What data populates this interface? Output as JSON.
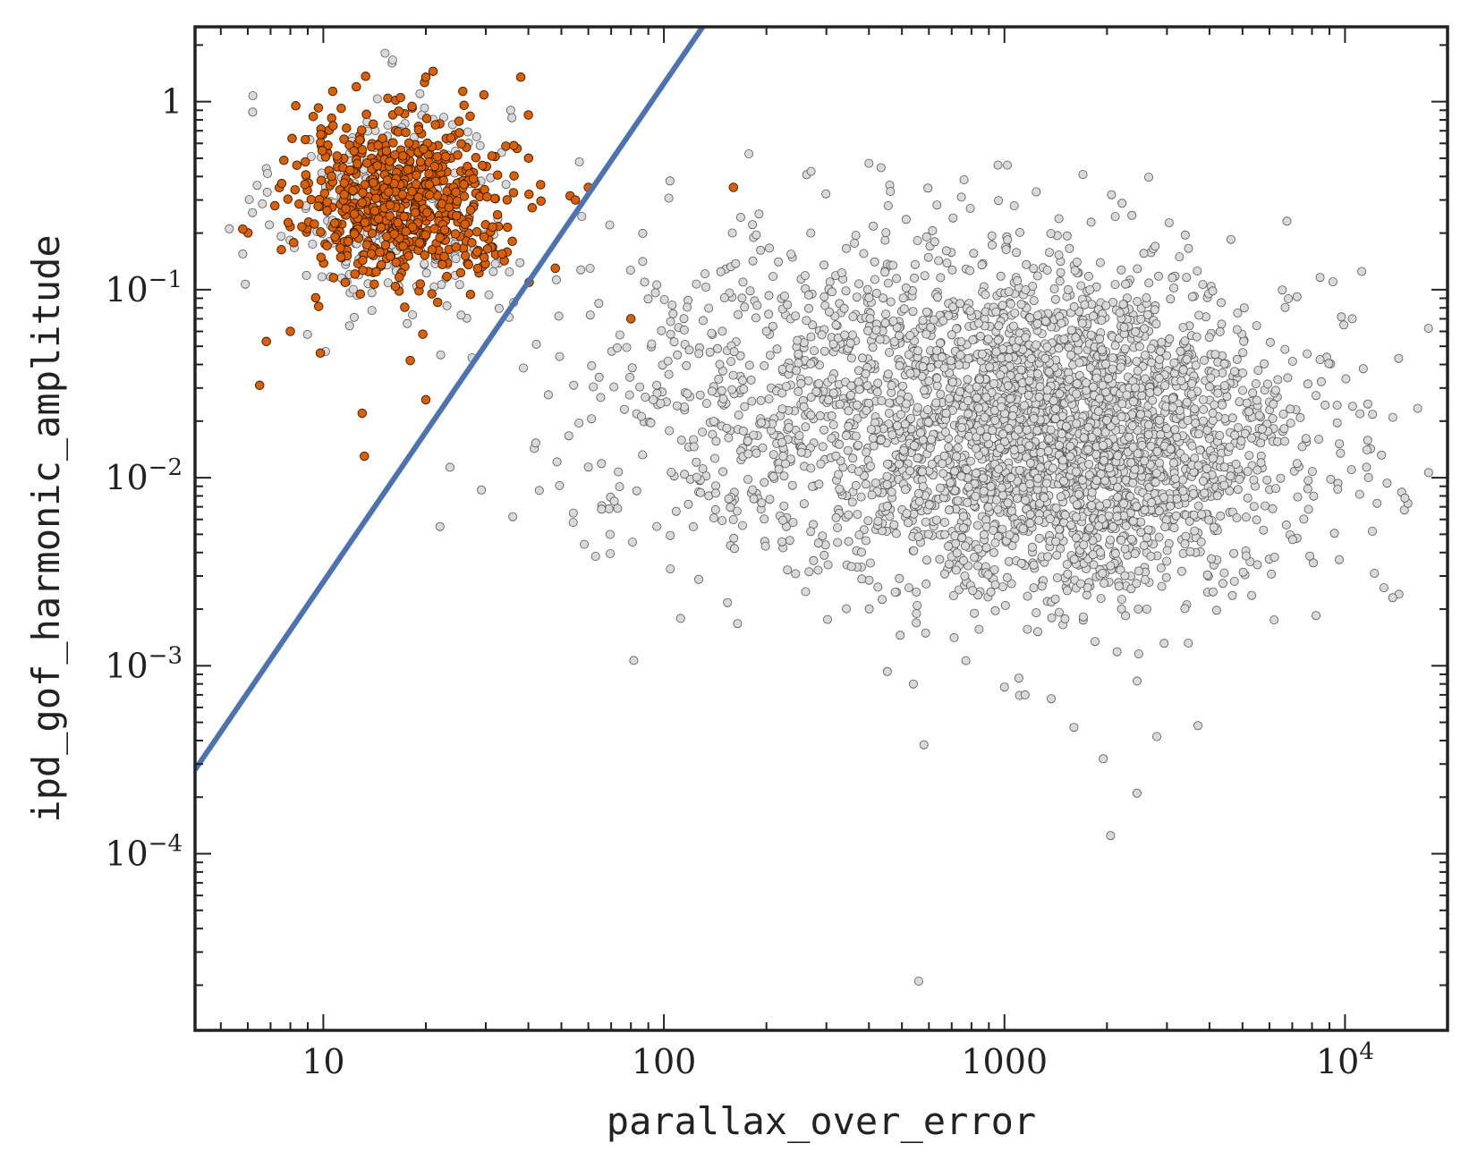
{
  "chart_data": {
    "type": "scatter",
    "title": "",
    "xlabel": "parallax_over_error",
    "ylabel": "ipd_gof_harmonic_amplitude",
    "xscale": "log",
    "yscale": "log",
    "xlim": [
      4.2,
      20000
    ],
    "ylim": [
      1.15e-05,
      2.5
    ],
    "grid": false,
    "x_ticks": [
      {
        "value": 10,
        "label": "10"
      },
      {
        "value": 100,
        "label": "100"
      },
      {
        "value": 1000,
        "label": "1000"
      },
      {
        "value": 10000,
        "label": "10",
        "sup": "4"
      }
    ],
    "y_ticks": [
      {
        "value": 1,
        "label": "1",
        "sup": ""
      },
      {
        "value": 0.1,
        "label": "10",
        "sup": "−1"
      },
      {
        "value": 0.01,
        "label": "10",
        "sup": "−2"
      },
      {
        "value": 0.001,
        "label": "10",
        "sup": "−3"
      },
      {
        "value": 0.0001,
        "label": "10",
        "sup": "−4"
      }
    ],
    "line": {
      "color": "#4c72b0",
      "points": [
        [
          4.2,
          0.00028
        ],
        [
          130,
          2.5
        ]
      ]
    },
    "series": [
      {
        "color": "#d9d9d9",
        "edge": "#555555",
        "clusters": [
          {
            "count": 280,
            "x_median": 16,
            "x_sigma_dex": 0.17,
            "y_median": 0.28,
            "y_sigma_dex": 0.3
          },
          {
            "count": 2600,
            "x_median": 1600,
            "x_sigma_dex": 0.33,
            "y_median": 0.016,
            "y_sigma_dex": 0.42
          },
          {
            "count": 900,
            "x_median": 350,
            "x_sigma_dex": 0.4,
            "y_median": 0.03,
            "y_sigma_dex": 0.45
          }
        ],
        "points": [
          [
            6.2,
            0.88
          ],
          [
            5.8,
            0.155
          ],
          [
            5.9,
            0.107
          ],
          [
            22,
            0.0055
          ],
          [
            36,
            0.0062
          ],
          [
            400,
            0.47
          ],
          [
            1020,
            0.46
          ],
          [
            1700,
            0.41
          ],
          [
            540,
            0.0008
          ],
          [
            580,
            0.00038
          ],
          [
            1000,
            0.00077
          ],
          [
            1150,
            0.0007
          ],
          [
            1600,
            0.00047
          ],
          [
            1950,
            0.00032
          ],
          [
            2050,
            0.000125
          ],
          [
            2450,
            0.00021
          ],
          [
            2800,
            0.00042
          ],
          [
            3700,
            0.00048
          ],
          [
            560,
            2.1e-05
          ],
          [
            15300,
            0.0073
          ],
          [
            15000,
            0.0078
          ],
          [
            14400,
            0.0024
          ],
          [
            13800,
            0.0023
          ],
          [
            13000,
            0.0026
          ],
          [
            12800,
            0.0132
          ],
          [
            12200,
            0.0031
          ],
          [
            11200,
            0.125
          ],
          [
            10500,
            0.07
          ],
          [
            9700,
            0.0135
          ]
        ]
      },
      {
        "color": "#d95f02",
        "edge": "#3a1a00",
        "clusters": [
          {
            "count": 620,
            "x_median": 17,
            "x_sigma_dex": 0.16,
            "y_median": 0.3,
            "y_sigma_dex": 0.21
          }
        ],
        "points": [
          [
            5.8,
            0.21
          ],
          [
            6.5,
            0.031
          ],
          [
            6.8,
            0.053
          ],
          [
            8.0,
            0.06
          ],
          [
            8.3,
            0.95
          ],
          [
            9.8,
            0.046
          ],
          [
            12.5,
            1.2
          ],
          [
            13.2,
            0.013
          ],
          [
            13,
            0.022
          ],
          [
            20,
            1.35
          ],
          [
            21,
            1.45
          ],
          [
            38,
            1.35
          ],
          [
            40,
            0.85
          ],
          [
            20,
            0.026
          ],
          [
            18,
            0.042
          ],
          [
            160,
            0.35
          ],
          [
            80,
            0.07
          ],
          [
            55,
            0.3
          ],
          [
            60,
            0.35
          ],
          [
            48,
            0.13
          ]
        ]
      }
    ]
  }
}
